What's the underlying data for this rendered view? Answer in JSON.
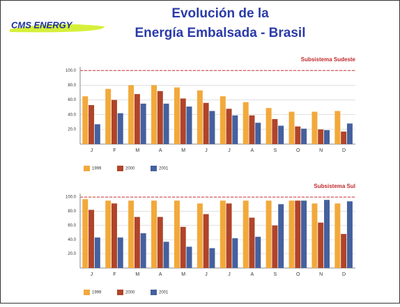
{
  "header": {
    "logo": "CMS ENERGY",
    "title_line1": "Evolución de la",
    "title_line2": "Energía Embalsada - Brasil"
  },
  "chart_data": [
    {
      "type": "bar",
      "title": "Subsistema Sudeste",
      "categories": [
        "J",
        "F",
        "M",
        "A",
        "M",
        "J",
        "J",
        "A",
        "S",
        "O",
        "N",
        "D"
      ],
      "series": [
        {
          "name": "1999",
          "color": "#f2a93b",
          "values": [
            65,
            75,
            80,
            80,
            77,
            73,
            65,
            57,
            49,
            44,
            44,
            45
          ]
        },
        {
          "name": "2000",
          "color": "#b0442a",
          "values": [
            53,
            60,
            68,
            72,
            62,
            56,
            48,
            39,
            34,
            24,
            20,
            17
          ]
        },
        {
          "name": "2001",
          "color": "#44619e",
          "values": [
            27,
            42,
            55,
            55,
            51,
            45,
            39,
            29,
            25,
            21,
            19,
            28
          ]
        }
      ],
      "ylim": [
        0,
        105
      ],
      "yticks": [
        {
          "value": 20,
          "label": "20.0"
        },
        {
          "value": 40,
          "label": "40.0"
        },
        {
          "value": 60,
          "label": "60.0"
        },
        {
          "value": 80,
          "label": "80.0"
        },
        {
          "value": 100,
          "label": "100.0"
        }
      ],
      "reference_line": 100,
      "grid": true
    },
    {
      "type": "bar",
      "title": "Subsistema Sul",
      "categories": [
        "J",
        "F",
        "M",
        "A",
        "M",
        "J",
        "J",
        "A",
        "S",
        "O",
        "N",
        "D"
      ],
      "series": [
        {
          "name": "1999",
          "color": "#f2a93b",
          "values": [
            97,
            95,
            95,
            95,
            95,
            91,
            95,
            95,
            95,
            95,
            91,
            91
          ]
        },
        {
          "name": "2000",
          "color": "#b0442a",
          "values": [
            82,
            91,
            72,
            72,
            58,
            76,
            91,
            71,
            60,
            95,
            64,
            48
          ]
        },
        {
          "name": "2001",
          "color": "#44619e",
          "values": [
            43,
            43,
            49,
            37,
            30,
            28,
            42,
            44,
            90,
            95,
            96,
            94
          ]
        }
      ],
      "ylim": [
        0,
        105
      ],
      "yticks": [
        {
          "value": 20,
          "label": "20.0"
        },
        {
          "value": 40,
          "label": "40.0"
        },
        {
          "value": 60,
          "label": "60.0"
        },
        {
          "value": 80,
          "label": "80.0"
        },
        {
          "value": 100,
          "label": "100.0"
        }
      ],
      "reference_line": 100,
      "grid": true
    }
  ]
}
